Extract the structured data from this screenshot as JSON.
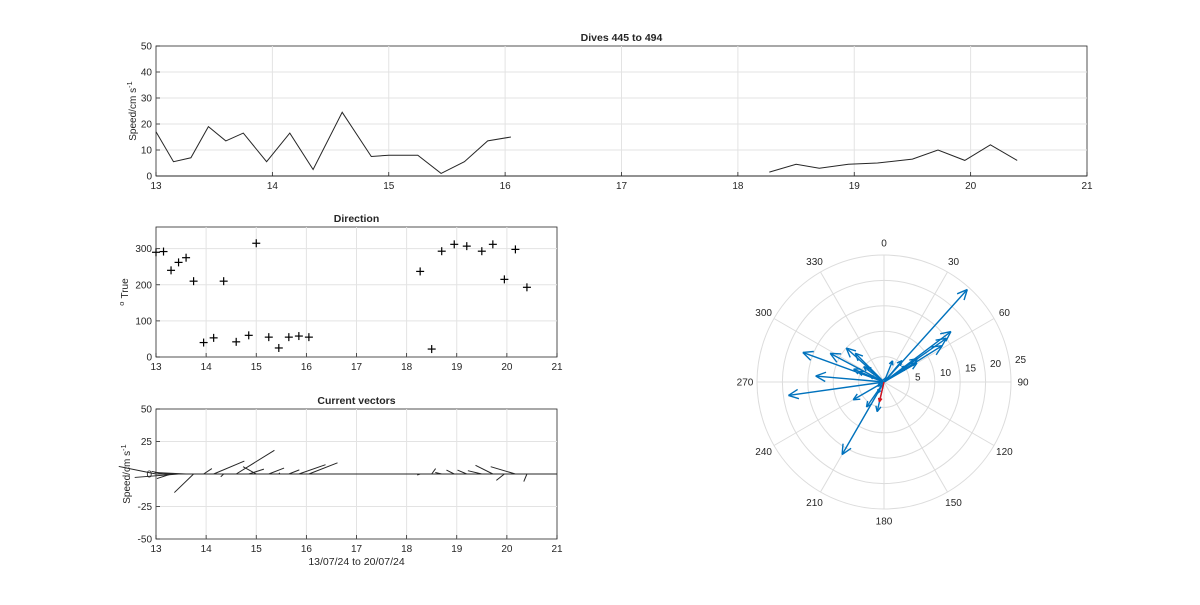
{
  "chart_data": [
    {
      "id": "speed",
      "type": "line",
      "title": "Dives 445 to 494",
      "ylabel": "Speed/cm s",
      "ylabel_superscript": "-1",
      "xlim": [
        13,
        21
      ],
      "ylim": [
        0,
        50
      ],
      "xticks": [
        13,
        14,
        15,
        16,
        17,
        18,
        19,
        20,
        21
      ],
      "yticks": [
        0,
        10,
        20,
        30,
        40,
        50
      ],
      "grid": true,
      "series": [
        {
          "segments": [
            [
              [
                13.0,
                17
              ],
              [
                13.15,
                5.5
              ],
              [
                13.3,
                7
              ],
              [
                13.45,
                19
              ],
              [
                13.6,
                13.5
              ],
              [
                13.75,
                16.5
              ],
              [
                13.95,
                5.5
              ],
              [
                14.15,
                16.5
              ],
              [
                14.35,
                2.5
              ],
              [
                14.6,
                24.5
              ],
              [
                14.85,
                7.5
              ],
              [
                15.0,
                8
              ],
              [
                15.25,
                8
              ],
              [
                15.45,
                1
              ],
              [
                15.65,
                5.5
              ],
              [
                15.85,
                13.5
              ],
              [
                16.05,
                15
              ]
            ],
            [
              [
                18.27,
                1.5
              ],
              [
                18.5,
                4.5
              ],
              [
                18.7,
                3
              ],
              [
                18.95,
                4.5
              ],
              [
                19.2,
                5
              ],
              [
                19.5,
                6.5
              ],
              [
                19.72,
                10
              ],
              [
                19.95,
                6
              ],
              [
                20.17,
                12
              ],
              [
                20.4,
                6
              ]
            ]
          ]
        }
      ]
    },
    {
      "id": "direction",
      "type": "scatter",
      "title": "Direction",
      "ylabel": "True",
      "ylabel_prefix": "o",
      "xlim": [
        13,
        21
      ],
      "ylim": [
        0,
        360
      ],
      "xticks": [
        13,
        14,
        15,
        16,
        17,
        18,
        19,
        20,
        21
      ],
      "yticks": [
        0,
        100,
        200,
        300
      ],
      "grid": true,
      "marker": "+",
      "points": [
        [
          13.0,
          290
        ],
        [
          13.15,
          292
        ],
        [
          13.3,
          240
        ],
        [
          13.45,
          262
        ],
        [
          13.6,
          275
        ],
        [
          13.75,
          210
        ],
        [
          13.95,
          40
        ],
        [
          14.15,
          53
        ],
        [
          14.35,
          210
        ],
        [
          14.6,
          42
        ],
        [
          14.85,
          60
        ],
        [
          15.0,
          315
        ],
        [
          15.25,
          55
        ],
        [
          15.45,
          25
        ],
        [
          15.65,
          55
        ],
        [
          15.85,
          58
        ],
        [
          16.05,
          55
        ],
        [
          18.27,
          237
        ],
        [
          18.5,
          22
        ],
        [
          18.7,
          293
        ],
        [
          18.95,
          312
        ],
        [
          19.2,
          307
        ],
        [
          19.5,
          293
        ],
        [
          19.72,
          312
        ],
        [
          19.95,
          215
        ],
        [
          20.17,
          298
        ],
        [
          20.4,
          193
        ]
      ]
    },
    {
      "id": "vectors",
      "type": "line",
      "title": "Current vectors",
      "ylabel": "Speed/cm s",
      "ylabel_superscript": "-1",
      "xlabel": "13/07/24 to 20/07/24",
      "xlim": [
        13,
        21
      ],
      "ylim": [
        -50,
        50
      ],
      "xticks": [
        13,
        14,
        15,
        16,
        17,
        18,
        19,
        20,
        21
      ],
      "yticks": [
        -50,
        -25,
        0,
        25,
        50
      ],
      "grid": true,
      "stick_time_per_cms": 0.0465,
      "sticks": [
        [
          13.0,
          17,
          290
        ],
        [
          13.15,
          5.5,
          292
        ],
        [
          13.3,
          7,
          240
        ],
        [
          13.45,
          19,
          262
        ],
        [
          13.6,
          13.5,
          275
        ],
        [
          13.75,
          16.5,
          210
        ],
        [
          13.95,
          5.5,
          40
        ],
        [
          14.15,
          16.5,
          53
        ],
        [
          14.35,
          2.5,
          210
        ],
        [
          14.6,
          24.5,
          42
        ],
        [
          14.85,
          7.5,
          60
        ],
        [
          15.0,
          8,
          315
        ],
        [
          15.25,
          8,
          55
        ],
        [
          15.45,
          1,
          25
        ],
        [
          15.65,
          5.5,
          55
        ],
        [
          15.85,
          13.5,
          58
        ],
        [
          16.05,
          15,
          55
        ],
        [
          18.27,
          1.5,
          237
        ],
        [
          18.5,
          4.5,
          22
        ],
        [
          18.7,
          3,
          293
        ],
        [
          18.95,
          4.5,
          312
        ],
        [
          19.2,
          5,
          307
        ],
        [
          19.5,
          6.5,
          293
        ],
        [
          19.72,
          10,
          312
        ],
        [
          19.95,
          6,
          215
        ],
        [
          20.17,
          12,
          298
        ],
        [
          20.4,
          6,
          193
        ]
      ]
    },
    {
      "id": "compass",
      "type": "scatter",
      "subtype": "polar-compass",
      "rmax": 25,
      "rticks": [
        5,
        10,
        15,
        20,
        25
      ],
      "angle_ticks": [
        0,
        30,
        60,
        90,
        120,
        150,
        180,
        210,
        240,
        270,
        300,
        330
      ],
      "colors": {
        "vectors": "#0072bd",
        "mean": "#d9111b"
      },
      "vectors": [
        [
          17,
          290
        ],
        [
          5.5,
          292
        ],
        [
          7,
          240
        ],
        [
          19,
          262
        ],
        [
          13.5,
          275
        ],
        [
          16.5,
          210
        ],
        [
          5.5,
          40
        ],
        [
          16.5,
          53
        ],
        [
          2.5,
          210
        ],
        [
          24.5,
          42
        ],
        [
          7.5,
          60
        ],
        [
          8,
          315
        ],
        [
          8,
          55
        ],
        [
          1,
          25
        ],
        [
          5.5,
          55
        ],
        [
          13.5,
          58
        ],
        [
          15,
          55
        ],
        [
          1.5,
          237
        ],
        [
          4.5,
          22
        ],
        [
          3,
          293
        ],
        [
          4.5,
          312
        ],
        [
          5,
          307
        ],
        [
          6.5,
          293
        ],
        [
          10,
          312
        ],
        [
          6,
          215
        ],
        [
          12,
          298
        ],
        [
          6,
          193
        ]
      ],
      "mean_vector": [
        4,
        193
      ]
    }
  ]
}
